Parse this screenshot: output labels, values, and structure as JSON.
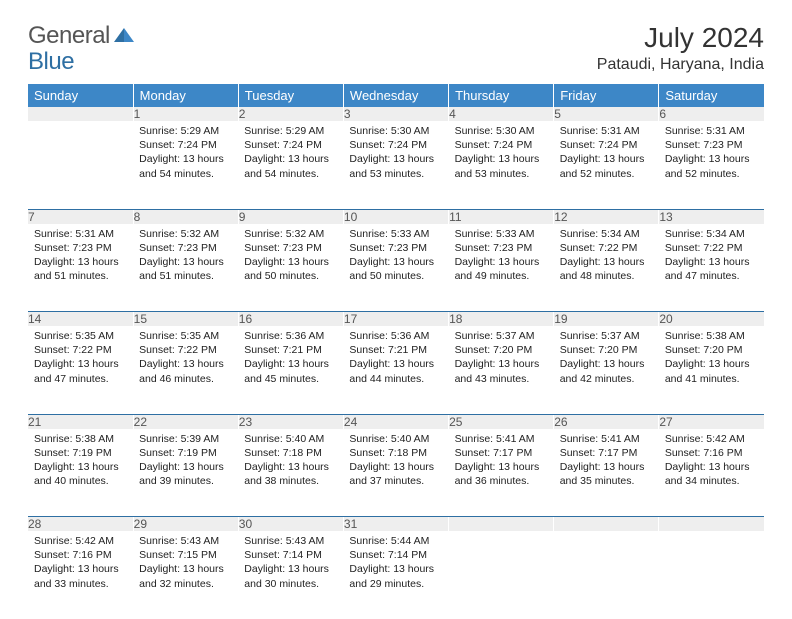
{
  "logo": {
    "text_a": "General",
    "text_b": "Blue",
    "brand_color": "#3d87c7"
  },
  "title": "July 2024",
  "location": "Pataudi, Haryana, India",
  "colors": {
    "header_bg": "#3d87c7",
    "header_text": "#ffffff",
    "daynum_bg": "#eeeeee",
    "daynum_text": "#555555",
    "row_divider": "#2e6fa3",
    "body_text": "#222222"
  },
  "day_headers": [
    "Sunday",
    "Monday",
    "Tuesday",
    "Wednesday",
    "Thursday",
    "Friday",
    "Saturday"
  ],
  "weeks": [
    [
      {
        "num": "",
        "lines": []
      },
      {
        "num": "1",
        "lines": [
          "Sunrise: 5:29 AM",
          "Sunset: 7:24 PM",
          "Daylight: 13 hours and 54 minutes."
        ]
      },
      {
        "num": "2",
        "lines": [
          "Sunrise: 5:29 AM",
          "Sunset: 7:24 PM",
          "Daylight: 13 hours and 54 minutes."
        ]
      },
      {
        "num": "3",
        "lines": [
          "Sunrise: 5:30 AM",
          "Sunset: 7:24 PM",
          "Daylight: 13 hours and 53 minutes."
        ]
      },
      {
        "num": "4",
        "lines": [
          "Sunrise: 5:30 AM",
          "Sunset: 7:24 PM",
          "Daylight: 13 hours and 53 minutes."
        ]
      },
      {
        "num": "5",
        "lines": [
          "Sunrise: 5:31 AM",
          "Sunset: 7:24 PM",
          "Daylight: 13 hours and 52 minutes."
        ]
      },
      {
        "num": "6",
        "lines": [
          "Sunrise: 5:31 AM",
          "Sunset: 7:23 PM",
          "Daylight: 13 hours and 52 minutes."
        ]
      }
    ],
    [
      {
        "num": "7",
        "lines": [
          "Sunrise: 5:31 AM",
          "Sunset: 7:23 PM",
          "Daylight: 13 hours and 51 minutes."
        ]
      },
      {
        "num": "8",
        "lines": [
          "Sunrise: 5:32 AM",
          "Sunset: 7:23 PM",
          "Daylight: 13 hours and 51 minutes."
        ]
      },
      {
        "num": "9",
        "lines": [
          "Sunrise: 5:32 AM",
          "Sunset: 7:23 PM",
          "Daylight: 13 hours and 50 minutes."
        ]
      },
      {
        "num": "10",
        "lines": [
          "Sunrise: 5:33 AM",
          "Sunset: 7:23 PM",
          "Daylight: 13 hours and 50 minutes."
        ]
      },
      {
        "num": "11",
        "lines": [
          "Sunrise: 5:33 AM",
          "Sunset: 7:23 PM",
          "Daylight: 13 hours and 49 minutes."
        ]
      },
      {
        "num": "12",
        "lines": [
          "Sunrise: 5:34 AM",
          "Sunset: 7:22 PM",
          "Daylight: 13 hours and 48 minutes."
        ]
      },
      {
        "num": "13",
        "lines": [
          "Sunrise: 5:34 AM",
          "Sunset: 7:22 PM",
          "Daylight: 13 hours and 47 minutes."
        ]
      }
    ],
    [
      {
        "num": "14",
        "lines": [
          "Sunrise: 5:35 AM",
          "Sunset: 7:22 PM",
          "Daylight: 13 hours and 47 minutes."
        ]
      },
      {
        "num": "15",
        "lines": [
          "Sunrise: 5:35 AM",
          "Sunset: 7:22 PM",
          "Daylight: 13 hours and 46 minutes."
        ]
      },
      {
        "num": "16",
        "lines": [
          "Sunrise: 5:36 AM",
          "Sunset: 7:21 PM",
          "Daylight: 13 hours and 45 minutes."
        ]
      },
      {
        "num": "17",
        "lines": [
          "Sunrise: 5:36 AM",
          "Sunset: 7:21 PM",
          "Daylight: 13 hours and 44 minutes."
        ]
      },
      {
        "num": "18",
        "lines": [
          "Sunrise: 5:37 AM",
          "Sunset: 7:20 PM",
          "Daylight: 13 hours and 43 minutes."
        ]
      },
      {
        "num": "19",
        "lines": [
          "Sunrise: 5:37 AM",
          "Sunset: 7:20 PM",
          "Daylight: 13 hours and 42 minutes."
        ]
      },
      {
        "num": "20",
        "lines": [
          "Sunrise: 5:38 AM",
          "Sunset: 7:20 PM",
          "Daylight: 13 hours and 41 minutes."
        ]
      }
    ],
    [
      {
        "num": "21",
        "lines": [
          "Sunrise: 5:38 AM",
          "Sunset: 7:19 PM",
          "Daylight: 13 hours and 40 minutes."
        ]
      },
      {
        "num": "22",
        "lines": [
          "Sunrise: 5:39 AM",
          "Sunset: 7:19 PM",
          "Daylight: 13 hours and 39 minutes."
        ]
      },
      {
        "num": "23",
        "lines": [
          "Sunrise: 5:40 AM",
          "Sunset: 7:18 PM",
          "Daylight: 13 hours and 38 minutes."
        ]
      },
      {
        "num": "24",
        "lines": [
          "Sunrise: 5:40 AM",
          "Sunset: 7:18 PM",
          "Daylight: 13 hours and 37 minutes."
        ]
      },
      {
        "num": "25",
        "lines": [
          "Sunrise: 5:41 AM",
          "Sunset: 7:17 PM",
          "Daylight: 13 hours and 36 minutes."
        ]
      },
      {
        "num": "26",
        "lines": [
          "Sunrise: 5:41 AM",
          "Sunset: 7:17 PM",
          "Daylight: 13 hours and 35 minutes."
        ]
      },
      {
        "num": "27",
        "lines": [
          "Sunrise: 5:42 AM",
          "Sunset: 7:16 PM",
          "Daylight: 13 hours and 34 minutes."
        ]
      }
    ],
    [
      {
        "num": "28",
        "lines": [
          "Sunrise: 5:42 AM",
          "Sunset: 7:16 PM",
          "Daylight: 13 hours and 33 minutes."
        ]
      },
      {
        "num": "29",
        "lines": [
          "Sunrise: 5:43 AM",
          "Sunset: 7:15 PM",
          "Daylight: 13 hours and 32 minutes."
        ]
      },
      {
        "num": "30",
        "lines": [
          "Sunrise: 5:43 AM",
          "Sunset: 7:14 PM",
          "Daylight: 13 hours and 30 minutes."
        ]
      },
      {
        "num": "31",
        "lines": [
          "Sunrise: 5:44 AM",
          "Sunset: 7:14 PM",
          "Daylight: 13 hours and 29 minutes."
        ]
      },
      {
        "num": "",
        "lines": []
      },
      {
        "num": "",
        "lines": []
      },
      {
        "num": "",
        "lines": []
      }
    ]
  ]
}
